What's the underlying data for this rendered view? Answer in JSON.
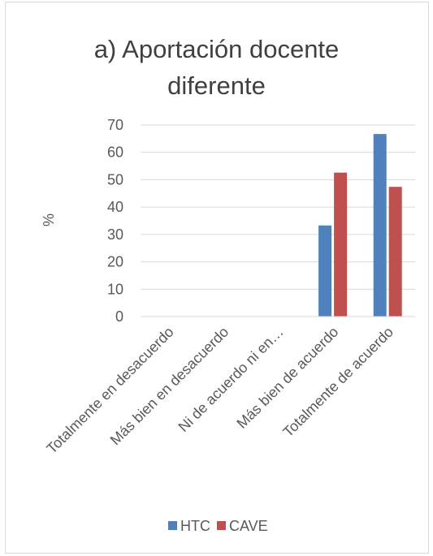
{
  "chart_data": {
    "type": "bar",
    "title_lines": [
      "a) Aportación docente",
      "diferente"
    ],
    "ylabel": "%",
    "xlabel": "",
    "ylim": [
      0,
      70
    ],
    "yticks": [
      0,
      10,
      20,
      30,
      40,
      50,
      60,
      70
    ],
    "categories": [
      "Totalmente en desacuerdo",
      "Más bien en desacuerdo",
      "Ni de acuerdo ni en…",
      "Más bien de acuerdo",
      "Totalmente de acuerdo"
    ],
    "series": [
      {
        "name": "HTC",
        "color": "#4F81BD",
        "values": [
          0,
          0,
          0,
          33.3,
          66.7
        ]
      },
      {
        "name": "CAVE",
        "color": "#C0504D",
        "values": [
          0,
          0,
          0,
          52.6,
          47.4
        ]
      }
    ],
    "grid": true,
    "legend_position": "bottom"
  }
}
